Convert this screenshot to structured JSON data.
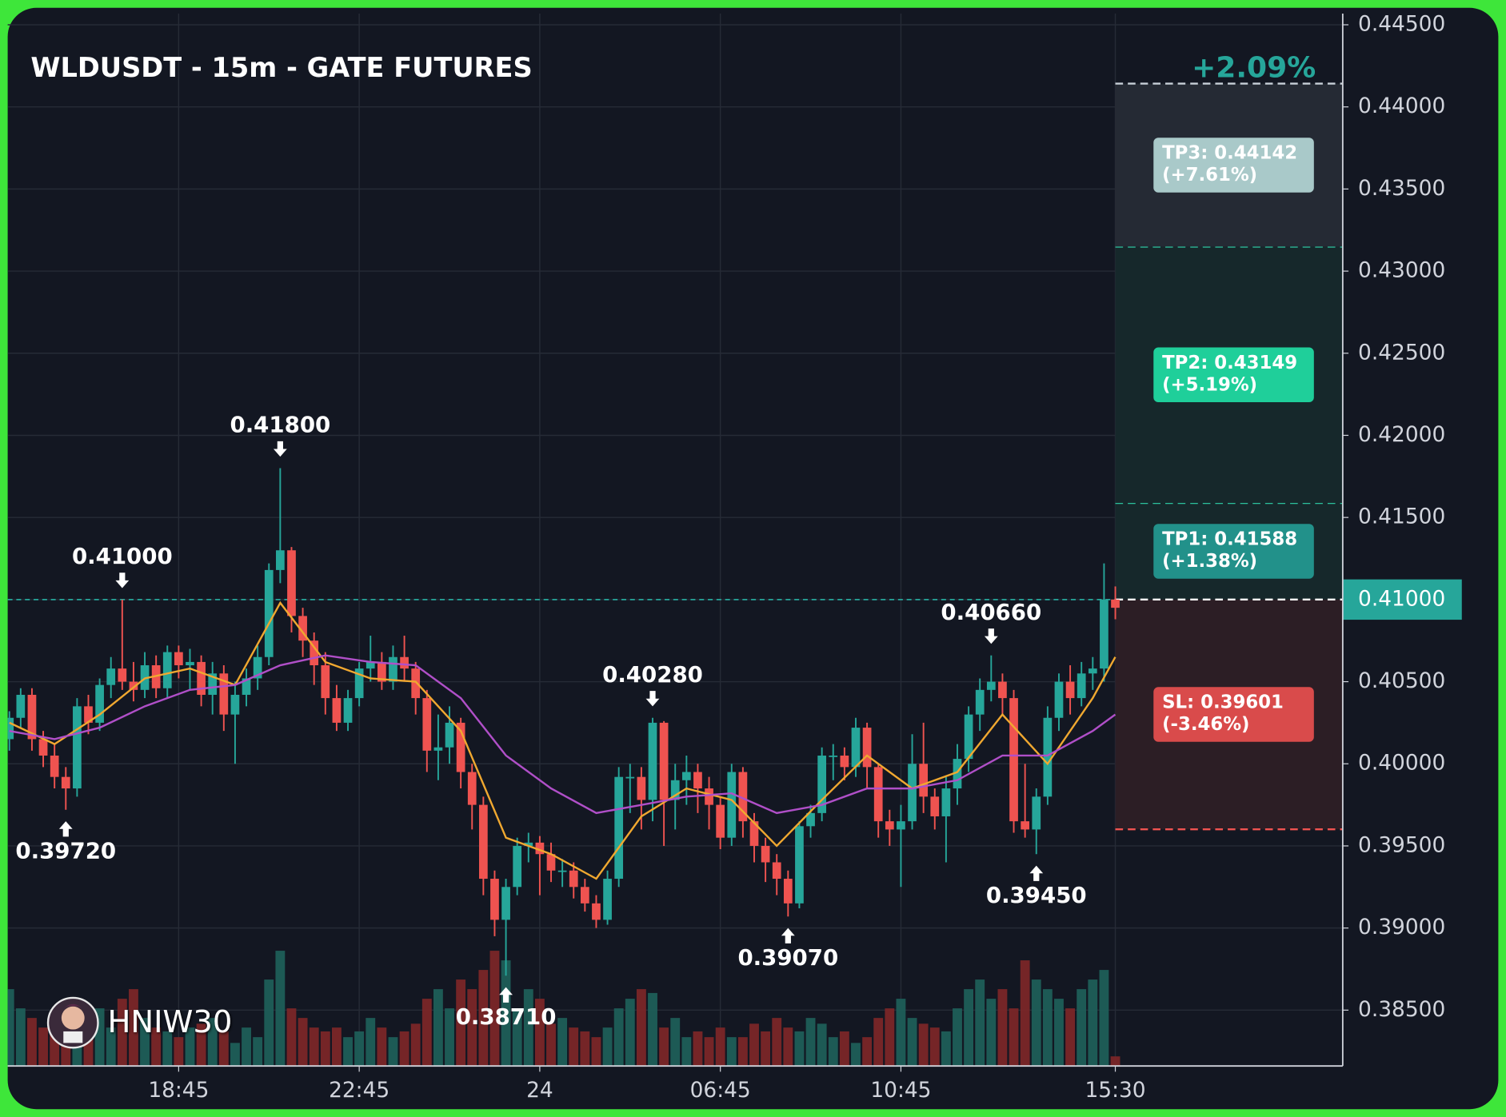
{
  "chart_data": {
    "type": "candlestick",
    "title": "WLDUSDT - 15m - GATE FUTURES",
    "watermark": "HNIW30",
    "up_color": "#26a69a",
    "down_color": "#ef5350",
    "open": [
      0.4015,
      0.4028,
      0.4042,
      0.4015,
      0.4005,
      0.3992,
      0.3985,
      0.4035,
      0.4025,
      0.4048,
      0.4058,
      0.405,
      0.4045,
      0.406,
      0.4046,
      0.4068,
      0.406,
      0.4062,
      0.4042,
      0.4055,
      0.403,
      0.4042,
      0.4052,
      0.4065,
      0.4118,
      0.413,
      0.409,
      0.4075,
      0.406,
      0.404,
      0.4025,
      0.404,
      0.4058,
      0.4062,
      0.405,
      0.4065,
      0.4058,
      0.404,
      0.4008,
      0.401,
      0.4025,
      0.3995,
      0.3975,
      0.393,
      0.3905,
      0.3925,
      0.395,
      0.3952,
      0.3945,
      0.3935,
      0.3935,
      0.3925,
      0.3915,
      0.3905,
      0.393,
      0.3992,
      0.3992,
      0.3978,
      0.4025,
      0.3978,
      0.399,
      0.3995,
      0.3985,
      0.3975,
      0.3955,
      0.3995,
      0.3965,
      0.395,
      0.394,
      0.393,
      0.3915,
      0.3962,
      0.397,
      0.4005,
      0.4005,
      0.3998,
      0.4022,
      0.3998,
      0.3965,
      0.396,
      0.3965,
      0.4,
      0.398,
      0.3968,
      0.3985,
      0.4003,
      0.403,
      0.4045,
      0.405,
      0.404,
      0.3965,
      0.396,
      0.398,
      0.4028,
      0.405,
      0.404,
      0.4055,
      0.4058,
      0.41
    ],
    "high": [
      0.4032,
      0.4046,
      0.4046,
      0.402,
      0.4012,
      0.3998,
      0.404,
      0.4042,
      0.4052,
      0.4065,
      0.41,
      0.4062,
      0.4068,
      0.4066,
      0.4072,
      0.4072,
      0.407,
      0.4066,
      0.4062,
      0.406,
      0.405,
      0.4058,
      0.4072,
      0.4122,
      0.418,
      0.4132,
      0.4095,
      0.408,
      0.4068,
      0.4048,
      0.4045,
      0.4062,
      0.4078,
      0.4068,
      0.4072,
      0.4078,
      0.4062,
      0.4045,
      0.403,
      0.4035,
      0.4028,
      0.4,
      0.398,
      0.3935,
      0.393,
      0.3955,
      0.3958,
      0.3956,
      0.3952,
      0.3942,
      0.394,
      0.393,
      0.392,
      0.3935,
      0.3998,
      0.4,
      0.3998,
      0.4028,
      0.4026,
      0.4,
      0.4005,
      0.4,
      0.3992,
      0.398,
      0.4,
      0.3998,
      0.397,
      0.3955,
      0.3945,
      0.3935,
      0.3965,
      0.3975,
      0.401,
      0.4012,
      0.401,
      0.4028,
      0.4025,
      0.4,
      0.3972,
      0.3975,
      0.4018,
      0.4025,
      0.3985,
      0.3992,
      0.4012,
      0.4035,
      0.4052,
      0.4066,
      0.4055,
      0.4045,
      0.4,
      0.3985,
      0.4035,
      0.4055,
      0.406,
      0.4062,
      0.4065,
      0.4122,
      0.4108
    ],
    "low": [
      0.4008,
      0.4022,
      0.4008,
      0.3998,
      0.3985,
      0.3972,
      0.398,
      0.4018,
      0.402,
      0.404,
      0.4045,
      0.4038,
      0.404,
      0.404,
      0.404,
      0.4052,
      0.4045,
      0.4035,
      0.403,
      0.402,
      0.4,
      0.4035,
      0.4045,
      0.406,
      0.411,
      0.408,
      0.4065,
      0.4048,
      0.403,
      0.402,
      0.402,
      0.4035,
      0.405,
      0.4045,
      0.4045,
      0.405,
      0.403,
      0.3995,
      0.399,
      0.4,
      0.3985,
      0.396,
      0.392,
      0.3895,
      0.3871,
      0.392,
      0.394,
      0.392,
      0.3928,
      0.3925,
      0.3918,
      0.391,
      0.39,
      0.3902,
      0.3925,
      0.397,
      0.396,
      0.3965,
      0.395,
      0.396,
      0.3975,
      0.397,
      0.396,
      0.3948,
      0.395,
      0.3955,
      0.394,
      0.3928,
      0.392,
      0.3907,
      0.3912,
      0.3955,
      0.3965,
      0.399,
      0.399,
      0.3992,
      0.3985,
      0.3955,
      0.395,
      0.3925,
      0.396,
      0.397,
      0.396,
      0.394,
      0.3975,
      0.3995,
      0.402,
      0.4038,
      0.403,
      0.3958,
      0.3955,
      0.3945,
      0.3975,
      0.402,
      0.403,
      0.4035,
      0.4045,
      0.405,
      0.4088
    ],
    "close": [
      0.4028,
      0.4042,
      0.4015,
      0.4005,
      0.3992,
      0.3985,
      0.4035,
      0.4025,
      0.4048,
      0.4058,
      0.405,
      0.4045,
      0.406,
      0.4046,
      0.4068,
      0.406,
      0.4062,
      0.4042,
      0.4055,
      0.403,
      0.4042,
      0.4052,
      0.4065,
      0.4118,
      0.413,
      0.409,
      0.4075,
      0.406,
      0.404,
      0.4025,
      0.404,
      0.4058,
      0.4062,
      0.405,
      0.4065,
      0.4058,
      0.404,
      0.4008,
      0.401,
      0.4025,
      0.3995,
      0.3975,
      0.393,
      0.3905,
      0.3925,
      0.395,
      0.3952,
      0.3945,
      0.3935,
      0.3935,
      0.3925,
      0.3915,
      0.3905,
      0.393,
      0.3992,
      0.3992,
      0.3978,
      0.4025,
      0.3978,
      0.399,
      0.3995,
      0.3985,
      0.3975,
      0.3955,
      0.3995,
      0.3965,
      0.395,
      0.394,
      0.393,
      0.3915,
      0.3962,
      0.397,
      0.4005,
      0.4005,
      0.3998,
      0.4022,
      0.3998,
      0.3965,
      0.396,
      0.3965,
      0.4,
      0.398,
      0.3968,
      0.3985,
      0.4003,
      0.403,
      0.4045,
      0.405,
      0.404,
      0.3965,
      0.396,
      0.398,
      0.4028,
      0.405,
      0.404,
      0.4055,
      0.4058,
      0.41,
      0.4095
    ],
    "volume": [
      40,
      30,
      25,
      20,
      18,
      22,
      35,
      15,
      30,
      20,
      35,
      40,
      25,
      20,
      18,
      15,
      20,
      22,
      25,
      18,
      12,
      20,
      15,
      45,
      60,
      30,
      25,
      20,
      18,
      20,
      15,
      18,
      25,
      20,
      15,
      18,
      22,
      35,
      40,
      30,
      45,
      40,
      50,
      60,
      55,
      30,
      40,
      35,
      22,
      25,
      20,
      18,
      15,
      20,
      30,
      35,
      40,
      38,
      20,
      25,
      15,
      18,
      15,
      20,
      15,
      15,
      22,
      18,
      25,
      20,
      18,
      25,
      22,
      15,
      18,
      12,
      15,
      25,
      30,
      35,
      25,
      22,
      20,
      18,
      30,
      40,
      45,
      35,
      40,
      30,
      55,
      45,
      40,
      35,
      30,
      40,
      45,
      50,
      5
    ],
    "moving_averages": [
      {
        "color": "#f0a830",
        "x": [
          0,
          4,
          8,
          12,
          16,
          20,
          24,
          28,
          32,
          36,
          40,
          44,
          48,
          52,
          56,
          60,
          64,
          68,
          72,
          76,
          80,
          84,
          88,
          92,
          96,
          98
        ],
        "values": [
          0.4025,
          0.4012,
          0.403,
          0.4052,
          0.4058,
          0.4048,
          0.4098,
          0.4062,
          0.4052,
          0.405,
          0.402,
          0.3955,
          0.3945,
          0.393,
          0.3968,
          0.3985,
          0.3978,
          0.395,
          0.3978,
          0.4005,
          0.3985,
          0.3995,
          0.403,
          0.4,
          0.404,
          0.4065
        ]
      },
      {
        "color": "#b04fc8",
        "x": [
          0,
          4,
          8,
          12,
          16,
          20,
          24,
          28,
          32,
          36,
          40,
          44,
          48,
          52,
          56,
          60,
          64,
          68,
          72,
          76,
          80,
          84,
          88,
          92,
          96,
          98
        ],
        "values": [
          0.402,
          0.4015,
          0.4022,
          0.4035,
          0.4045,
          0.4048,
          0.406,
          0.4066,
          0.4062,
          0.406,
          0.404,
          0.4005,
          0.3985,
          0.397,
          0.3975,
          0.398,
          0.3982,
          0.397,
          0.3975,
          0.3985,
          0.3985,
          0.399,
          0.4005,
          0.4005,
          0.402,
          0.403
        ]
      }
    ],
    "annotations": [
      {
        "x": 5,
        "value": 0.3972,
        "label": "0.39720",
        "side": "low"
      },
      {
        "x": 10,
        "value": 0.41,
        "label": "0.41000",
        "side": "high"
      },
      {
        "x": 24,
        "value": 0.418,
        "label": "0.41800",
        "side": "high"
      },
      {
        "x": 44,
        "value": 0.3871,
        "label": "0.38710",
        "side": "low"
      },
      {
        "x": 57,
        "value": 0.4028,
        "label": "0.40280",
        "side": "high"
      },
      {
        "x": 69,
        "value": 0.3907,
        "label": "0.39070",
        "side": "low"
      },
      {
        "x": 87,
        "value": 0.4066,
        "label": "0.40660",
        "side": "high"
      },
      {
        "x": 91,
        "value": 0.3945,
        "label": "0.39450",
        "side": "low"
      }
    ],
    "entry": {
      "price": 0.41,
      "label": "0.41000",
      "color": "#26a69a"
    },
    "pnl": {
      "value": 2.09,
      "label": "+2.09%",
      "color": "#26a69a"
    },
    "targets": [
      {
        "price": 0.41588,
        "label": "TP1: 0.41588",
        "change": 1.38,
        "change_label": "(+1.38%)",
        "color": "#22918a",
        "zone_color": "#16282b"
      },
      {
        "price": 0.43149,
        "label": "TP2: 0.43149",
        "change": 5.19,
        "change_label": "(+5.19%)",
        "color": "#1fcf9a",
        "zone_color": "#16282b"
      },
      {
        "price": 0.44142,
        "label": "TP3: 0.44142",
        "change": 7.61,
        "change_label": "(+7.61%)",
        "color": "#a9c9c9",
        "zone_color": "#252a34"
      }
    ],
    "stop": {
      "price": 0.39601,
      "label": "SL: 0.39601",
      "change": -3.46,
      "change_label": "(-3.46%)",
      "color": "#d94b4b",
      "zone_color": "#2c1e25"
    },
    "xlim": [
      -0.15,
      118.15
    ],
    "xticks": [
      {
        "value": 15,
        "label": "18:45"
      },
      {
        "value": 31,
        "label": "22:45"
      },
      {
        "value": 47,
        "label": "24"
      },
      {
        "value": 63,
        "label": "06:45"
      },
      {
        "value": 79,
        "label": "10:45"
      },
      {
        "value": 98,
        "label": "15:30"
      }
    ],
    "ylim": [
      0.3816,
      0.4465
    ],
    "yticks": [
      {
        "value": 0.385,
        "label": "0.38500"
      },
      {
        "value": 0.39,
        "label": "0.39000"
      },
      {
        "value": 0.395,
        "label": "0.39500"
      },
      {
        "value": 0.4,
        "label": "0.40000"
      },
      {
        "value": 0.405,
        "label": "0.40500"
      },
      {
        "value": 0.41,
        "label": "0.41000"
      },
      {
        "value": 0.415,
        "label": "0.41500"
      },
      {
        "value": 0.42,
        "label": "0.42000"
      },
      {
        "value": 0.425,
        "label": "0.42500"
      },
      {
        "value": 0.43,
        "label": "0.43000"
      },
      {
        "value": 0.435,
        "label": "0.43500"
      },
      {
        "value": 0.44,
        "label": "0.44000"
      },
      {
        "value": 0.445,
        "label": "0.44500"
      }
    ],
    "grid": true
  }
}
